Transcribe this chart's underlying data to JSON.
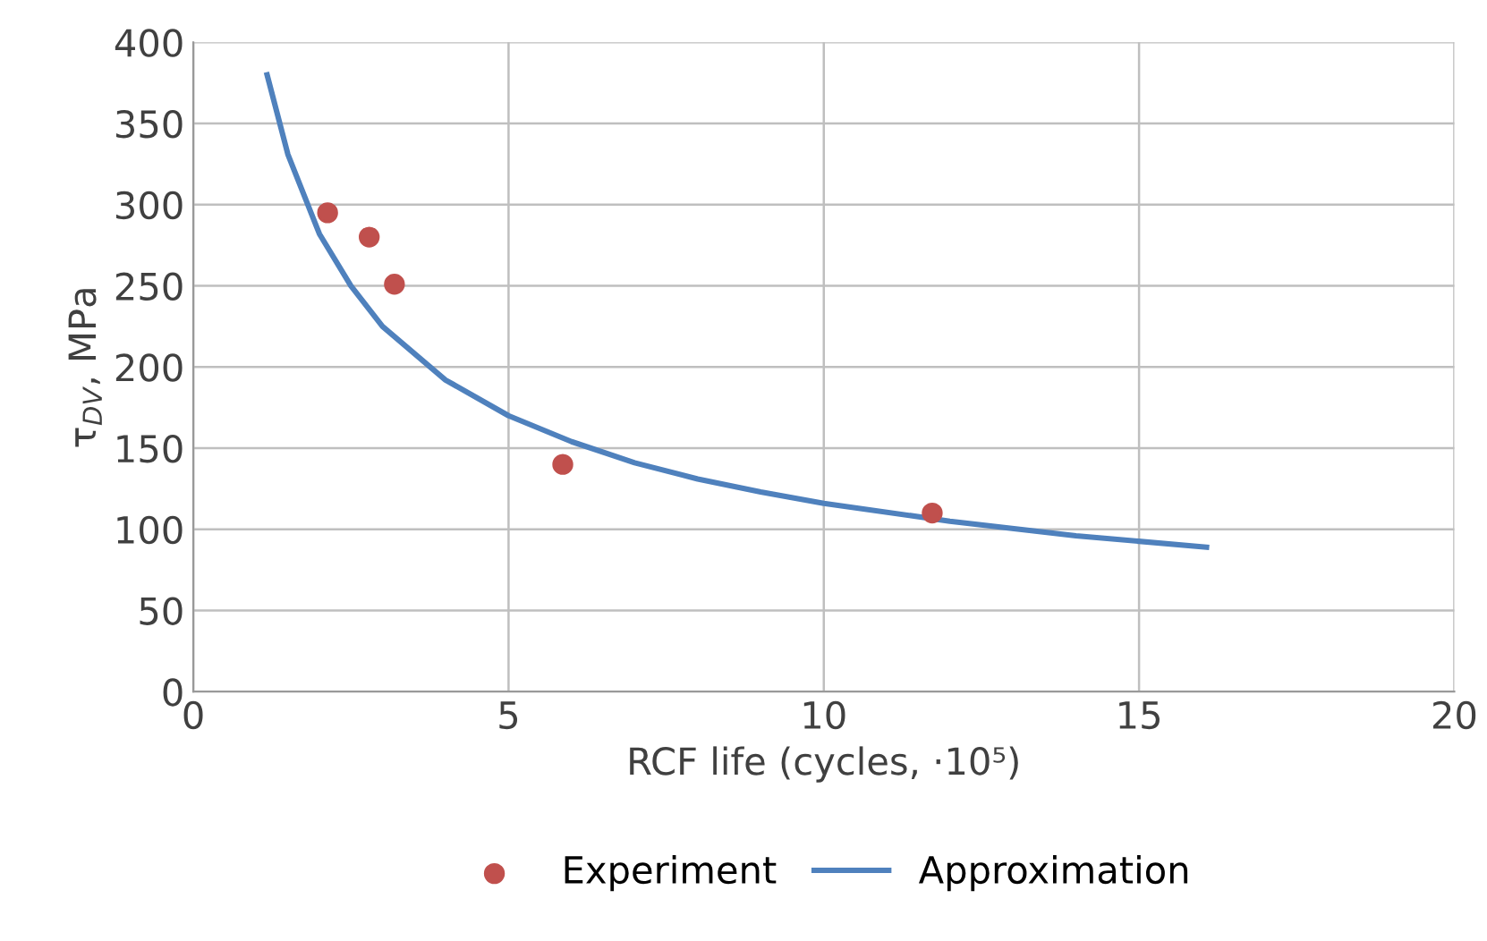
{
  "chart_data": {
    "type": "scatter",
    "xlabel": "RCF life (cycles, ·10⁵)",
    "ylabel": "τ$_{DV}$, MPa",
    "xlim": [
      0,
      20
    ],
    "xticks": [
      0,
      5,
      10,
      15,
      20
    ],
    "ylim": [
      0,
      400
    ],
    "yticks": [
      0,
      50,
      100,
      150,
      200,
      250,
      300,
      350,
      400
    ],
    "grid": true,
    "legend": "bottom",
    "series": [
      {
        "name": "Experiment",
        "marker": "circle",
        "color": "#c0504d",
        "x": [
          2.13,
          2.79,
          3.19,
          5.86,
          11.72
        ],
        "values": [
          295,
          280,
          251,
          140,
          110
        ]
      },
      {
        "name": "Approximation",
        "type": "line",
        "marker": "none",
        "color": "#4f81bd",
        "x": [
          1.17,
          1.5,
          2,
          2.5,
          3,
          4,
          5,
          6,
          7,
          8,
          9,
          10,
          12,
          14,
          16.07
        ],
        "values": [
          380,
          331,
          282,
          250,
          225,
          192,
          170,
          154,
          141,
          131,
          123,
          116,
          105,
          96,
          89
        ]
      }
    ]
  }
}
